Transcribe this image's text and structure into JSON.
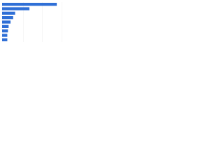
{
  "chart_data": {
    "type": "bar",
    "orientation": "horizontal",
    "categories": [
      null,
      null,
      null,
      null,
      null,
      null,
      null,
      null,
      null
    ],
    "values": [
      84,
      42,
      20,
      17,
      13,
      10,
      9,
      8,
      8
    ],
    "color": "#2f6fd6",
    "xlim": [
      0,
      100
    ]
  }
}
